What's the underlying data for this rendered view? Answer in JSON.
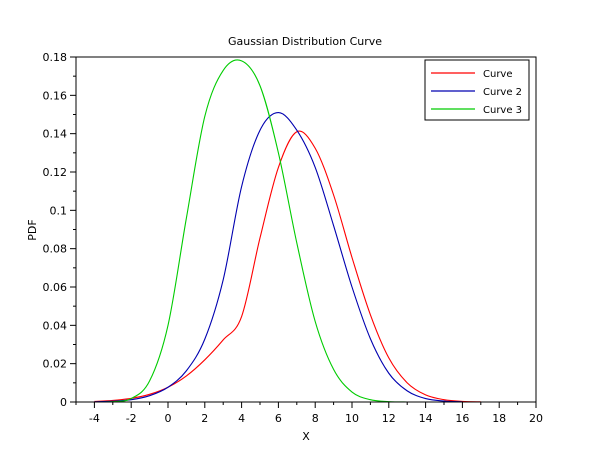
{
  "chart_data": {
    "type": "line",
    "title": "Gaussian Distribution Curve",
    "xlabel": "X",
    "ylabel": "PDF",
    "xlim": [
      -5,
      20
    ],
    "ylim": [
      0,
      0.18
    ],
    "xticks": [
      -4,
      -2,
      0,
      2,
      4,
      6,
      8,
      10,
      12,
      14,
      16,
      18,
      20
    ],
    "yticks": [
      0,
      0.02,
      0.04,
      0.06,
      0.08,
      0.1,
      0.12,
      0.14,
      0.16,
      0.18
    ],
    "legend_position": "top-right",
    "grid": false,
    "series": [
      {
        "name": "Curve",
        "color": "#ff0000",
        "x": [
          -4,
          -3,
          -2,
          -1,
          0,
          1,
          2,
          3,
          4,
          5,
          6,
          7,
          8,
          9,
          10,
          11,
          12,
          13,
          14,
          15,
          16,
          17
        ],
        "y": [
          0.0003,
          0.0008,
          0.0019,
          0.004,
          0.0077,
          0.0136,
          0.022,
          0.0324,
          0.0446,
          0.0856,
          0.1224,
          0.141,
          0.1324,
          0.108,
          0.0754,
          0.0455,
          0.023,
          0.01,
          0.0037,
          0.0012,
          0.0003,
          0.0001
        ]
      },
      {
        "name": "Curve 2",
        "color": "#0000b0",
        "x": [
          -4,
          -3,
          -2,
          -1,
          0,
          1,
          2,
          3,
          4,
          5,
          6,
          7,
          8,
          9,
          10,
          11,
          12,
          13,
          14,
          15,
          16
        ],
        "y": [
          0.0001,
          0.0004,
          0.0012,
          0.0033,
          0.0077,
          0.0163,
          0.0328,
          0.0638,
          0.1124,
          0.1418,
          0.151,
          0.1418,
          0.1224,
          0.092,
          0.06,
          0.033,
          0.015,
          0.0058,
          0.0018,
          0.0005,
          0.0001
        ]
      },
      {
        "name": "Curve 3",
        "color": "#00cc00",
        "x": [
          -4,
          -3,
          -2,
          -1,
          0,
          1,
          2,
          3,
          4,
          5,
          6,
          7,
          8,
          9,
          10,
          11,
          12,
          13
        ],
        "y": [
          0.0,
          0.0002,
          0.0018,
          0.011,
          0.04,
          0.096,
          0.149,
          0.173,
          0.178,
          0.165,
          0.13,
          0.083,
          0.042,
          0.017,
          0.0052,
          0.0012,
          0.0002,
          0.0
        ]
      }
    ]
  }
}
